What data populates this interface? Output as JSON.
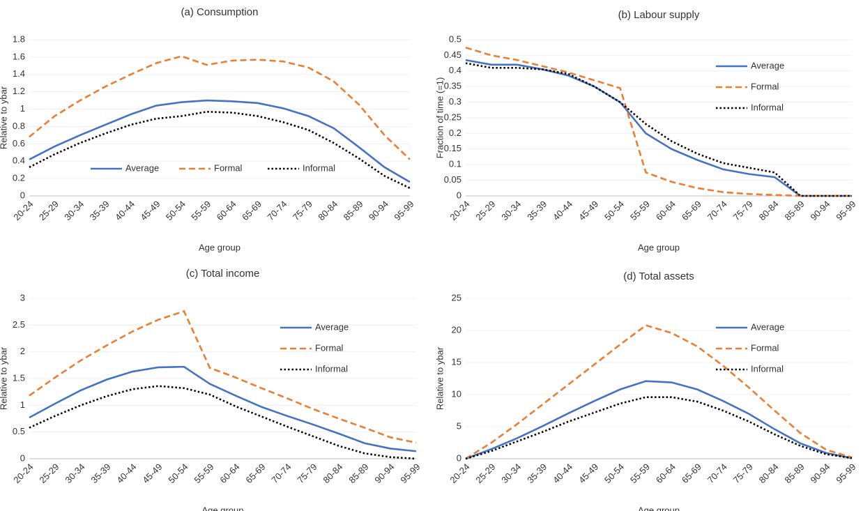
{
  "chart_data": [
    {
      "type": "line",
      "title": "(a) Consumption",
      "xlabel": "Age group",
      "ylabel": "Relative to ybar",
      "categories": [
        "20-24",
        "25-29",
        "30-34",
        "35-39",
        "40-44",
        "45-49",
        "50-54",
        "55-59",
        "60-64",
        "65-69",
        "70-74",
        "75-79",
        "80-84",
        "85-89",
        "90-94",
        "95-99"
      ],
      "series": [
        {
          "name": "Average",
          "color": "#4472c4",
          "linestyle": "solid",
          "values": [
            0.42,
            0.57,
            0.7,
            0.82,
            0.94,
            1.04,
            1.08,
            1.1,
            1.09,
            1.07,
            1.01,
            0.92,
            0.78,
            0.56,
            0.33,
            0.16
          ]
        },
        {
          "name": "Formal",
          "color": "#ed7d31",
          "linestyle": "dashed",
          "values": [
            0.68,
            0.92,
            1.1,
            1.26,
            1.4,
            1.53,
            1.61,
            1.51,
            1.56,
            1.57,
            1.55,
            1.48,
            1.32,
            1.05,
            0.7,
            0.42
          ]
        },
        {
          "name": "Informal",
          "color": "#000000",
          "linestyle": "dotted",
          "values": [
            0.33,
            0.48,
            0.61,
            0.72,
            0.82,
            0.89,
            0.92,
            0.97,
            0.96,
            0.92,
            0.85,
            0.76,
            0.61,
            0.43,
            0.23,
            0.09
          ]
        }
      ],
      "ylim": [
        0,
        1.8
      ],
      "yticks": [
        0,
        0.2,
        0.4,
        0.6,
        0.8,
        1,
        1.2,
        1.4,
        1.6,
        1.8
      ],
      "grid": true,
      "legend": "lower center"
    },
    {
      "type": "line",
      "title": "(b) Labour supply",
      "xlabel": "Age group",
      "ylabel": "Fraction of time (=1)",
      "categories": [
        "20-24",
        "25-29",
        "30-34",
        "35-39",
        "40-44",
        "45-49",
        "50-54",
        "55-59",
        "60-64",
        "65-69",
        "70-74",
        "75-79",
        "80-84",
        "85-89",
        "90-94",
        "95-99"
      ],
      "series": [
        {
          "name": "Average",
          "color": "#4472c4",
          "linestyle": "solid",
          "values": [
            0.435,
            0.42,
            0.42,
            0.405,
            0.385,
            0.35,
            0.3,
            0.2,
            0.15,
            0.115,
            0.085,
            0.07,
            0.06,
            0,
            0,
            0
          ]
        },
        {
          "name": "Formal",
          "color": "#ed7d31",
          "linestyle": "dashed",
          "values": [
            0.475,
            0.45,
            0.435,
            0.415,
            0.395,
            0.37,
            0.345,
            0.075,
            0.045,
            0.025,
            0.012,
            0.006,
            0.003,
            0,
            0,
            0
          ]
        },
        {
          "name": "Informal",
          "color": "#000000",
          "linestyle": "dotted",
          "values": [
            0.425,
            0.41,
            0.41,
            0.405,
            0.39,
            0.35,
            0.3,
            0.23,
            0.175,
            0.135,
            0.105,
            0.09,
            0.075,
            0,
            0,
            0
          ]
        }
      ],
      "ylim": [
        0,
        0.5
      ],
      "yticks": [
        0,
        0.05,
        0.1,
        0.15,
        0.2,
        0.25,
        0.3,
        0.35,
        0.4,
        0.45,
        0.5
      ],
      "grid": true,
      "legend": "upper right"
    },
    {
      "type": "line",
      "title": "(c) Total income",
      "xlabel": "Age group",
      "ylabel": "Relative to ybar",
      "categories": [
        "20-24",
        "25-29",
        "30-34",
        "35-39",
        "40-44",
        "45-49",
        "50-54",
        "55-59",
        "60-64",
        "65-69",
        "70-74",
        "75-79",
        "80-84",
        "85-89",
        "90-94",
        "95-99"
      ],
      "series": [
        {
          "name": "Average",
          "color": "#4472c4",
          "linestyle": "solid",
          "values": [
            0.77,
            1.03,
            1.28,
            1.48,
            1.63,
            1.71,
            1.72,
            1.4,
            1.18,
            0.97,
            0.8,
            0.64,
            0.47,
            0.29,
            0.19,
            0.14
          ]
        },
        {
          "name": "Formal",
          "color": "#ed7d31",
          "linestyle": "dashed",
          "values": [
            1.18,
            1.52,
            1.84,
            2.12,
            2.38,
            2.6,
            2.76,
            1.7,
            1.52,
            1.32,
            1.13,
            0.93,
            0.75,
            0.58,
            0.4,
            0.3
          ]
        },
        {
          "name": "Informal",
          "color": "#000000",
          "linestyle": "dotted",
          "values": [
            0.58,
            0.8,
            1.0,
            1.17,
            1.3,
            1.36,
            1.32,
            1.2,
            0.98,
            0.79,
            0.6,
            0.42,
            0.24,
            0.1,
            0.03,
            0.0
          ]
        }
      ],
      "ylim": [
        0,
        3
      ],
      "yticks": [
        0,
        0.5,
        1,
        1.5,
        2,
        2.5,
        3
      ],
      "grid": true,
      "legend": "upper right"
    },
    {
      "type": "line",
      "title": "(d) Total assets",
      "xlabel": "Age group",
      "ylabel": "Relative to ybar",
      "categories": [
        "20-24",
        "25-29",
        "30-34",
        "35-39",
        "40-44",
        "45-49",
        "50-54",
        "55-59",
        "60-64",
        "65-69",
        "70-74",
        "75-79",
        "80-84",
        "85-89",
        "90-94",
        "95-99"
      ],
      "series": [
        {
          "name": "Average",
          "color": "#4472c4",
          "linestyle": "solid",
          "values": [
            0,
            1.5,
            3.2,
            5.1,
            7.1,
            9.0,
            10.8,
            12.1,
            11.9,
            10.8,
            9.0,
            7.0,
            4.6,
            2.4,
            0.9,
            0.1
          ]
        },
        {
          "name": "Formal",
          "color": "#ed7d31",
          "linestyle": "dashed",
          "values": [
            0,
            2.5,
            5.4,
            8.5,
            11.6,
            14.7,
            17.8,
            20.8,
            19.6,
            17.5,
            14.5,
            11.1,
            7.5,
            4.0,
            1.4,
            0.2
          ]
        },
        {
          "name": "Informal",
          "color": "#000000",
          "linestyle": "dotted",
          "values": [
            0,
            1.2,
            2.7,
            4.2,
            5.8,
            7.2,
            8.6,
            9.6,
            9.6,
            8.9,
            7.5,
            5.8,
            3.8,
            2.0,
            0.7,
            0.1
          ]
        }
      ],
      "ylim": [
        0,
        25
      ],
      "yticks": [
        0,
        5,
        10,
        15,
        20,
        25
      ],
      "grid": true,
      "legend": "upper right"
    }
  ]
}
